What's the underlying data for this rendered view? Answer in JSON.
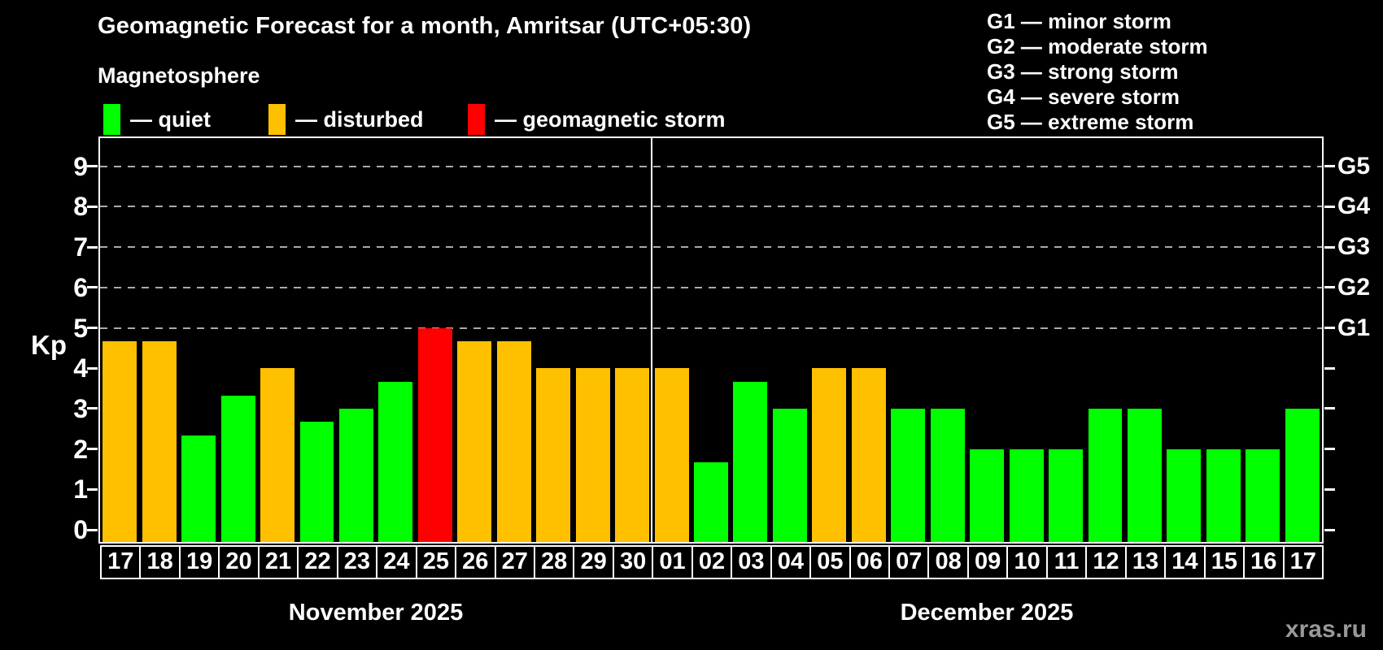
{
  "title": "Geomagnetic Forecast for a month, Amritsar (UTC+05:30)",
  "subtitle": "Magnetosphere",
  "legend": [
    {
      "key": "quiet",
      "label": "— quiet",
      "color": "#00ff00"
    },
    {
      "key": "disturbed",
      "label": "— disturbed",
      "color": "#ffc000"
    },
    {
      "key": "storm",
      "label": "— geomagnetic storm",
      "color": "#ff0000"
    }
  ],
  "g_legend": [
    {
      "label": "G1 — minor storm"
    },
    {
      "label": "G2 — moderate storm"
    },
    {
      "label": "G3 — strong storm"
    },
    {
      "label": "G4 — severe storm"
    },
    {
      "label": "G5 — extreme storm"
    }
  ],
  "axis": {
    "kp_label": "Kp"
  },
  "months": [
    {
      "label": "November 2025"
    },
    {
      "label": "December 2025"
    }
  ],
  "watermark": "xras.ru",
  "chart_data": {
    "type": "bar",
    "title": "Geomagnetic Forecast for a month, Amritsar (UTC+05:30)",
    "subtitle": "Magnetosphere",
    "ylabel": "Kp",
    "ylim": [
      -0.3,
      9.7
    ],
    "y_ticks": [
      0,
      1,
      2,
      3,
      4,
      5,
      6,
      7,
      8,
      9
    ],
    "gridlines": [
      5,
      6,
      7,
      8,
      9
    ],
    "grid": true,
    "legend_position": "top",
    "right_axis_labels": [
      {
        "label": "G5",
        "kp": 9
      },
      {
        "label": "G4",
        "kp": 8
      },
      {
        "label": "G3",
        "kp": 7
      },
      {
        "label": "G2",
        "kp": 6
      },
      {
        "label": "G1",
        "kp": 5
      }
    ],
    "colors": {
      "quiet": "#00ff00",
      "disturbed": "#ffc000",
      "storm": "#ff0000"
    },
    "bars": [
      {
        "month": "November 2025",
        "day": "17",
        "kp": 4.67,
        "status": "disturbed"
      },
      {
        "month": "November 2025",
        "day": "18",
        "kp": 4.67,
        "status": "disturbed"
      },
      {
        "month": "November 2025",
        "day": "19",
        "kp": 2.33,
        "status": "quiet"
      },
      {
        "month": "November 2025",
        "day": "20",
        "kp": 3.33,
        "status": "quiet"
      },
      {
        "month": "November 2025",
        "day": "21",
        "kp": 4,
        "status": "disturbed"
      },
      {
        "month": "November 2025",
        "day": "22",
        "kp": 2.67,
        "status": "quiet"
      },
      {
        "month": "November 2025",
        "day": "23",
        "kp": 3,
        "status": "quiet"
      },
      {
        "month": "November 2025",
        "day": "24",
        "kp": 3.67,
        "status": "quiet"
      },
      {
        "month": "November 2025",
        "day": "25",
        "kp": 5,
        "status": "storm"
      },
      {
        "month": "November 2025",
        "day": "26",
        "kp": 4.67,
        "status": "disturbed"
      },
      {
        "month": "November 2025",
        "day": "27",
        "kp": 4.67,
        "status": "disturbed"
      },
      {
        "month": "November 2025",
        "day": "28",
        "kp": 4,
        "status": "disturbed"
      },
      {
        "month": "November 2025",
        "day": "29",
        "kp": 4,
        "status": "disturbed"
      },
      {
        "month": "November 2025",
        "day": "30",
        "kp": 4,
        "status": "disturbed"
      },
      {
        "month": "December 2025",
        "day": "01",
        "kp": 4,
        "status": "disturbed"
      },
      {
        "month": "December 2025",
        "day": "02",
        "kp": 1.67,
        "status": "quiet"
      },
      {
        "month": "December 2025",
        "day": "03",
        "kp": 3.67,
        "status": "quiet"
      },
      {
        "month": "December 2025",
        "day": "04",
        "kp": 3,
        "status": "quiet"
      },
      {
        "month": "December 2025",
        "day": "05",
        "kp": 4,
        "status": "disturbed"
      },
      {
        "month": "December 2025",
        "day": "06",
        "kp": 4,
        "status": "disturbed"
      },
      {
        "month": "December 2025",
        "day": "07",
        "kp": 3,
        "status": "quiet"
      },
      {
        "month": "December 2025",
        "day": "08",
        "kp": 3,
        "status": "quiet"
      },
      {
        "month": "December 2025",
        "day": "09",
        "kp": 2,
        "status": "quiet"
      },
      {
        "month": "December 2025",
        "day": "10",
        "kp": 2,
        "status": "quiet"
      },
      {
        "month": "December 2025",
        "day": "11",
        "kp": 2,
        "status": "quiet"
      },
      {
        "month": "December 2025",
        "day": "12",
        "kp": 3,
        "status": "quiet"
      },
      {
        "month": "December 2025",
        "day": "13",
        "kp": 3,
        "status": "quiet"
      },
      {
        "month": "December 2025",
        "day": "14",
        "kp": 2,
        "status": "quiet"
      },
      {
        "month": "December 2025",
        "day": "15",
        "kp": 2,
        "status": "quiet"
      },
      {
        "month": "December 2025",
        "day": "16",
        "kp": 2,
        "status": "quiet"
      },
      {
        "month": "December 2025",
        "day": "17",
        "kp": 3,
        "status": "quiet"
      }
    ]
  }
}
